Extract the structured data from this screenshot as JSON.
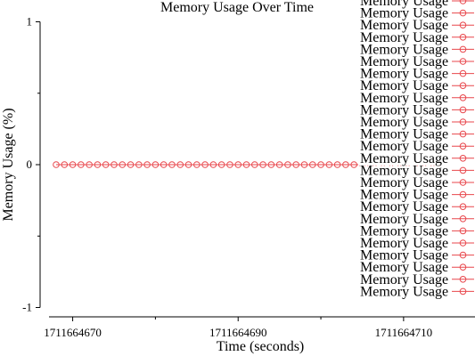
{
  "chart_data": {
    "type": "line",
    "title": "Memory Usage Over Time",
    "xlabel": "Time (seconds)",
    "ylabel": "Memory Usage (%)",
    "xlim": [
      1711664668,
      1711664714
    ],
    "ylim": [
      -1,
      1
    ],
    "x_ticks": [
      1711664670,
      1711664690,
      1711664710
    ],
    "x_minor_ticks": [
      1711664680,
      1711664700
    ],
    "y_ticks": [
      1,
      0,
      -1
    ],
    "y_minor_ticks": [
      0.5,
      -0.5
    ],
    "grid": false,
    "legend_position": "top-right",
    "series_style": {
      "color": "#e8474c",
      "marker": "open-circle"
    },
    "series": [
      {
        "name": "Memory Usage",
        "x": [
          1711664668,
          1711664669,
          1711664670,
          1711664671,
          1711664672,
          1711664673,
          1711664674,
          1711664675,
          1711664676,
          1711664677,
          1711664678,
          1711664679,
          1711664680,
          1711664681,
          1711664682,
          1711664683,
          1711664684,
          1711664685,
          1711664686,
          1711664687,
          1711664688,
          1711664689,
          1711664690,
          1711664691,
          1711664692,
          1711664693,
          1711664694,
          1711664695,
          1711664696,
          1711664697,
          1711664698,
          1711664699,
          1711664700,
          1711664701,
          1711664702,
          1711664703,
          1711664704,
          1711664705,
          1711664706,
          1711664707,
          1711664708,
          1711664709,
          1711664710,
          1711664711,
          1711664712,
          1711664713,
          1711664714
        ],
        "values": [
          0,
          0,
          0,
          0,
          0,
          0,
          0,
          0,
          0,
          0,
          0,
          0,
          0,
          0,
          0,
          0,
          0,
          0,
          0,
          0,
          0,
          0,
          0,
          0,
          0,
          0,
          0,
          0,
          0,
          0,
          0,
          0,
          0,
          0,
          0,
          0,
          0,
          0,
          0,
          0,
          0,
          0,
          0,
          0,
          0,
          0,
          0
        ]
      }
    ],
    "legend_entries": [
      "Memory Usage",
      "Memory Usage",
      "Memory Usage",
      "Memory Usage",
      "Memory Usage",
      "Memory Usage",
      "Memory Usage",
      "Memory Usage",
      "Memory Usage",
      "Memory Usage",
      "Memory Usage",
      "Memory Usage",
      "Memory Usage",
      "Memory Usage",
      "Memory Usage",
      "Memory Usage",
      "Memory Usage",
      "Memory Usage",
      "Memory Usage",
      "Memory Usage",
      "Memory Usage",
      "Memory Usage",
      "Memory Usage",
      "Memory Usage",
      "Memory Usage"
    ]
  }
}
